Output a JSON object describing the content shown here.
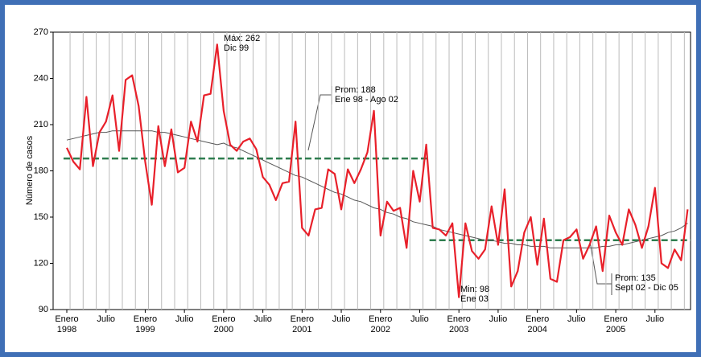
{
  "chart_data": {
    "type": "line",
    "y_label": "Número de casos",
    "categories": [
      "Enero\n1998",
      null,
      null,
      null,
      null,
      null,
      "Julio",
      null,
      null,
      null,
      null,
      null,
      "Enero\n1999",
      null,
      null,
      null,
      null,
      null,
      "Julio",
      null,
      null,
      null,
      null,
      null,
      "Enero\n2000",
      null,
      null,
      null,
      null,
      null,
      "Julio",
      null,
      null,
      null,
      null,
      null,
      "Enero\n2001",
      null,
      null,
      null,
      null,
      null,
      "Julio",
      null,
      null,
      null,
      null,
      null,
      "Enero\n2002",
      null,
      null,
      null,
      null,
      null,
      "Julio",
      null,
      null,
      null,
      null,
      null,
      "Enero\n2003",
      null,
      null,
      null,
      null,
      null,
      "Julio",
      null,
      null,
      null,
      null,
      null,
      "Enero\n2004",
      null,
      null,
      null,
      null,
      null,
      "Julio",
      null,
      null,
      null,
      null,
      null,
      "Enero\n2005",
      null,
      null,
      null,
      null,
      null,
      "Julio",
      null,
      null,
      null,
      null,
      null
    ],
    "series": [
      {
        "color": "#e8202a",
        "width": 2.2,
        "values": [
          195,
          186,
          181,
          228,
          183,
          205,
          212,
          229,
          193,
          239,
          242,
          222,
          186,
          158,
          209,
          183,
          207,
          179,
          182,
          212,
          199,
          229,
          230,
          262,
          219,
          197,
          193,
          199,
          201,
          194,
          176,
          171,
          161,
          172,
          173,
          212,
          143,
          138,
          155,
          156,
          181,
          178,
          155,
          181,
          172,
          181,
          192,
          219,
          138,
          160,
          154,
          156,
          130,
          180,
          160,
          197,
          143,
          142,
          138,
          146,
          98,
          146,
          128,
          123,
          129,
          157,
          132,
          168,
          105,
          115,
          140,
          150,
          119,
          149,
          110,
          108,
          135,
          137,
          142,
          123,
          132,
          144,
          115,
          151,
          140,
          132,
          155,
          145,
          130,
          144,
          169,
          120,
          117,
          129,
          122,
          155
        ]
      },
      {
        "color": "#555555",
        "width": 1,
        "values": [
          200,
          201,
          202,
          203,
          204,
          205,
          205,
          206,
          206,
          206,
          206,
          206,
          206,
          206,
          205,
          205,
          204,
          203,
          202,
          201,
          200,
          199,
          198,
          197,
          198,
          196,
          195,
          193,
          191,
          189,
          187,
          185,
          183,
          181,
          179,
          177,
          176,
          174,
          172,
          170,
          168,
          166,
          165,
          163,
          161,
          160,
          158,
          156,
          155,
          153,
          152,
          150,
          149,
          147,
          146,
          145,
          144,
          142,
          141,
          140,
          139,
          138,
          137,
          136,
          135,
          135,
          134,
          133,
          133,
          132,
          132,
          131,
          131,
          131,
          130,
          130,
          130,
          130,
          130,
          130,
          130,
          130,
          131,
          131,
          132,
          132,
          133,
          134,
          135,
          136,
          137,
          138,
          140,
          141,
          143,
          146
        ]
      }
    ],
    "reference_lines": [
      {
        "value": 188,
        "from": 0,
        "to": 55,
        "color": "#2e7d4f"
      },
      {
        "value": 135,
        "from": 56,
        "to": 95,
        "color": "#2e7d4f"
      }
    ],
    "annotations": [
      {
        "lines": [
          "Máx: 262",
          "Dic 99"
        ]
      },
      {
        "lines": [
          "Min: 98",
          "Ene 03"
        ]
      },
      {
        "lines": [
          "Prom: 188",
          "Ene 98 - Ago 02"
        ]
      },
      {
        "lines": [
          "Prom: 135",
          "Sept 02 - Dic 05"
        ]
      }
    ],
    "ylim": [
      90,
      270
    ],
    "yticks": [
      90,
      120,
      150,
      180,
      210,
      240,
      270
    ],
    "grid": true
  }
}
